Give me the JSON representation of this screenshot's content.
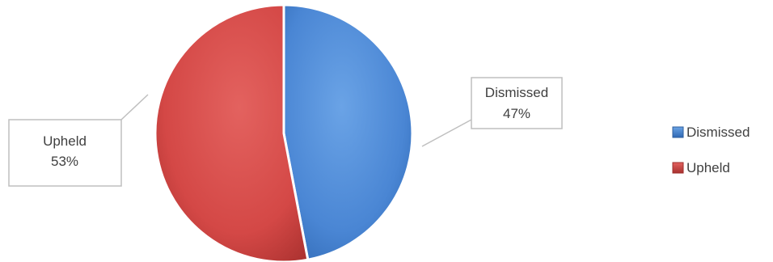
{
  "chart_data": {
    "type": "pie",
    "title": "",
    "slices": [
      {
        "label": "Dismissed",
        "value": 47,
        "display": "47%",
        "color": "#4a86d4"
      },
      {
        "label": "Upheld",
        "value": 53,
        "display": "53%",
        "color": "#d44846"
      }
    ],
    "legend": {
      "position": "right",
      "entries": [
        "Dismissed",
        "Upheld"
      ]
    },
    "data_labels": "callout"
  }
}
